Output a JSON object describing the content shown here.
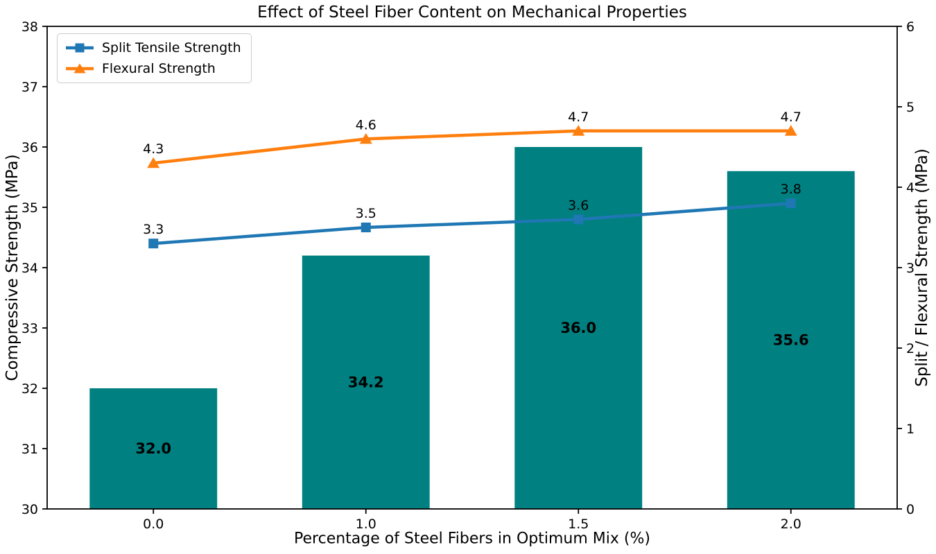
{
  "figure": {
    "background": "#ffffff",
    "text_color": "#000000"
  },
  "chart_data": {
    "type": "bar+line",
    "title": "Effect of Steel Fiber Content on Mechanical Properties",
    "xlabel": "Percentage of Steel Fibers in Optimum Mix (%)",
    "ylabel_left": "Compressive Strength (MPa)",
    "ylabel_right": "Split / Flexural Strength (MPa)",
    "categories": [
      "0.0",
      "1.0",
      "1.5",
      "2.0"
    ],
    "bars": {
      "name": "Compressive Strength",
      "axis": "left",
      "values": [
        32.0,
        34.2,
        36.0,
        35.6
      ],
      "labels": [
        "32.0",
        "34.2",
        "36.0",
        "35.6"
      ],
      "color": "#008080"
    },
    "series": [
      {
        "name": "Split Tensile Strength",
        "type": "line",
        "axis": "right",
        "marker": "square",
        "values": [
          3.3,
          3.5,
          3.6,
          3.8
        ],
        "labels": [
          "3.3",
          "3.5",
          "3.6",
          "3.8"
        ],
        "color": "#1f77b4"
      },
      {
        "name": "Flexural Strength",
        "type": "line",
        "axis": "right",
        "marker": "triangle",
        "values": [
          4.3,
          4.6,
          4.7,
          4.7
        ],
        "labels": [
          "4.3",
          "4.6",
          "4.7",
          "4.7"
        ],
        "color": "#ff7f0e"
      }
    ],
    "ylim_left": [
      30,
      38
    ],
    "ylim_right": [
      0,
      6
    ],
    "axis_left": {
      "ticks": [
        "30",
        "31",
        "32",
        "33",
        "34",
        "35",
        "36",
        "37",
        "38"
      ]
    },
    "axis_right": {
      "ticks": [
        "0",
        "1",
        "2",
        "3",
        "4",
        "5",
        "6"
      ]
    },
    "legend": {
      "position": "upper left",
      "entries": [
        "Split Tensile Strength",
        "Flexural Strength"
      ]
    },
    "grid": false
  }
}
